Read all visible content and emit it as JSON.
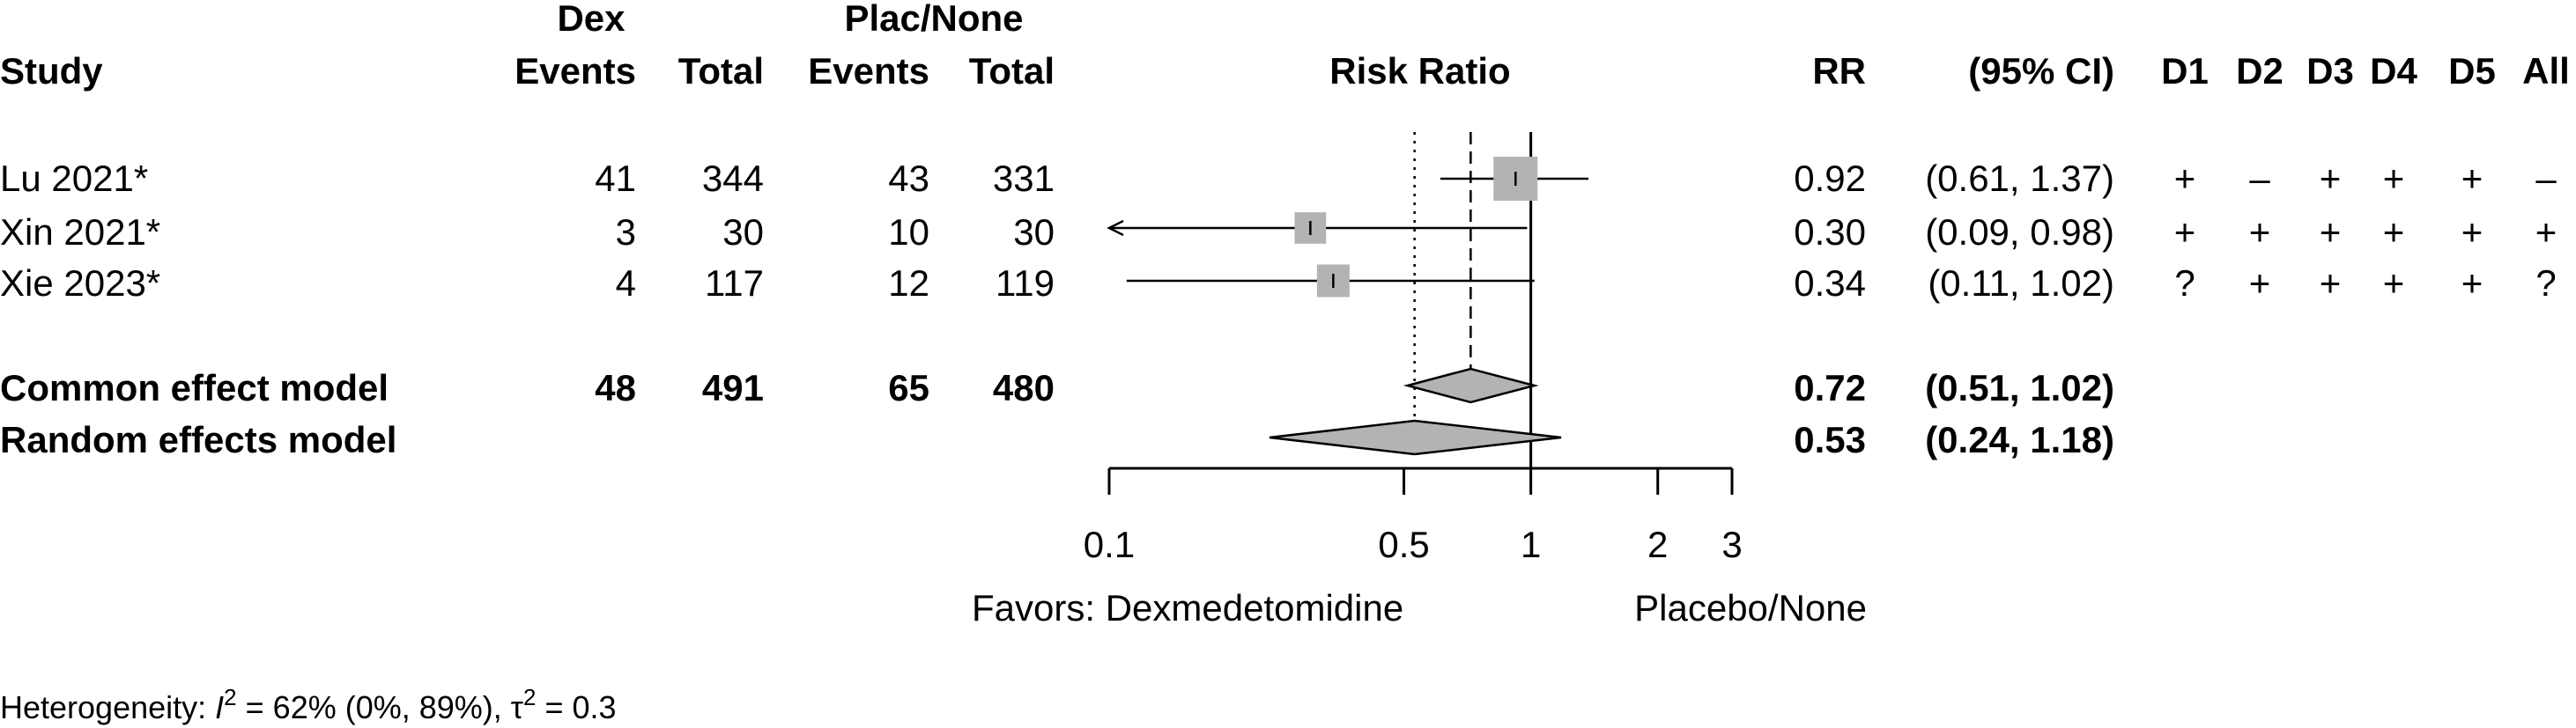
{
  "headers": {
    "group_exp": "Dex",
    "group_ctrl": "Plac/None",
    "study": "Study",
    "events_exp": "Events",
    "total_exp": "Total",
    "events_ctrl": "Events",
    "total_ctrl": "Total",
    "plot": "Risk Ratio",
    "rr": "RR",
    "ci": "(95% CI)",
    "rob": [
      "D1",
      "D2",
      "D3",
      "D4",
      "D5",
      "All"
    ]
  },
  "chart_data": {
    "type": "forest",
    "xlabel": "Risk Ratio",
    "xscale": "log",
    "xlim": [
      0.1,
      3
    ],
    "xticks": [
      0.1,
      0.5,
      1,
      2,
      3
    ],
    "xtick_labels": [
      "0.1",
      "0.5",
      "1",
      "2",
      "3"
    ],
    "null_value": 1,
    "favors_left": "Favors: Dexmedetomidine",
    "favors_right": "Placebo/None",
    "studies": [
      {
        "label": "Lu 2021*",
        "events_exp": "41",
        "total_exp": "344",
        "events_ctrl": "43",
        "total_ctrl": "331",
        "rr": 0.92,
        "lower": 0.61,
        "upper": 1.37,
        "rr_text": "0.92",
        "ci_text": "(0.61, 1.37)",
        "weight": 1.0,
        "rob": [
          "+",
          "–",
          "+",
          "+",
          "+",
          "–"
        ]
      },
      {
        "label": "Xin 2021*",
        "events_exp": "3",
        "total_exp": "30",
        "events_ctrl": "10",
        "total_ctrl": "30",
        "rr": 0.3,
        "lower": 0.09,
        "upper": 0.98,
        "rr_text": "0.30",
        "ci_text": "(0.09, 0.98)",
        "weight": 0.45,
        "rob": [
          "+",
          "+",
          "+",
          "+",
          "+",
          "+"
        ]
      },
      {
        "label": "Xie 2023*",
        "events_exp": "4",
        "total_exp": "117",
        "events_ctrl": "12",
        "total_ctrl": "119",
        "rr": 0.34,
        "lower": 0.11,
        "upper": 1.02,
        "rr_text": "0.34",
        "ci_text": "(0.11, 1.02)",
        "weight": 0.5,
        "rob": [
          "?",
          "+",
          "+",
          "+",
          "+",
          "?"
        ]
      }
    ],
    "common": {
      "label": "Common effect model",
      "events_exp": "48",
      "total_exp": "491",
      "events_ctrl": "65",
      "total_ctrl": "480",
      "rr": 0.72,
      "lower": 0.51,
      "upper": 1.02,
      "rr_text": "0.72",
      "ci_text": "(0.51, 1.02)"
    },
    "random": {
      "label": "Random effects model",
      "rr": 0.53,
      "lower": 0.24,
      "upper": 1.18,
      "rr_text": "0.53",
      "ci_text": "(0.24, 1.18)"
    }
  },
  "heterogeneity": {
    "prefix": "Heterogeneity: ",
    "i_symbol": "I",
    "i_sup": "2",
    "i_value": " = 62% (0%, 89%), ",
    "tau_symbol": "τ",
    "tau_sup": "2",
    "tau_value": " = 0.3"
  }
}
